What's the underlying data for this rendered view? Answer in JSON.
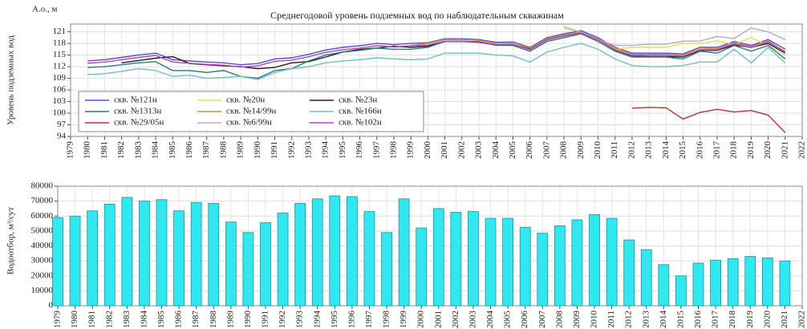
{
  "chart_data": [
    {
      "type": "line",
      "title": "Среднегодовой уровень подземных вод по наблюдательным скважинам",
      "annotation": "А.о., м",
      "ylabel": "Уровень подземных вод",
      "grid": true,
      "legend": "lower left",
      "xlim": [
        1979,
        2022
      ],
      "xticks": [
        1979,
        1980,
        1981,
        1982,
        1983,
        1984,
        1985,
        1986,
        1987,
        1988,
        1989,
        1990,
        1991,
        1992,
        1993,
        1994,
        1995,
        1996,
        1997,
        1998,
        1999,
        2000,
        2001,
        2002,
        2003,
        2004,
        2005,
        2006,
        2007,
        2008,
        2009,
        2010,
        2011,
        2012,
        2013,
        2014,
        2015,
        2016,
        2017,
        2018,
        2019,
        2020,
        2021,
        2022
      ],
      "ylim": [
        94,
        123
      ],
      "yticks": [
        94,
        97,
        100,
        103,
        106,
        109,
        112,
        115,
        118,
        121
      ],
      "x": [
        1980,
        1981,
        1982,
        1983,
        1984,
        1985,
        1986,
        1987,
        1988,
        1989,
        1990,
        1991,
        1992,
        1993,
        1994,
        1995,
        1996,
        1997,
        1998,
        1999,
        2000,
        2001,
        2002,
        2003,
        2004,
        2005,
        2006,
        2007,
        2008,
        2009,
        2010,
        2011,
        2012,
        2013,
        2014,
        2015,
        2016,
        2017,
        2018,
        2019,
        2020,
        2021
      ],
      "series": [
        {
          "name": "скв. №121н",
          "color": "#5050d0",
          "values": [
            113.5,
            113.8,
            114.4,
            115.0,
            115.5,
            113.8,
            113.5,
            113.2,
            113.0,
            112.5,
            112.8,
            114.0,
            114.3,
            115.2,
            116.3,
            117.0,
            117.4,
            118.0,
            117.7,
            118.0,
            118.2,
            119.2,
            119.2,
            119.0,
            118.3,
            118.4,
            117.0,
            119.5,
            120.5,
            121.3,
            119.5,
            117.0,
            115.5,
            115.5,
            115.5,
            115.3,
            117.0,
            117.0,
            118.5,
            117.5,
            119.0,
            116.5
          ]
        },
        {
          "name": "скв. №20н",
          "color": "#e8e050",
          "values": [
            null,
            null,
            null,
            null,
            null,
            null,
            null,
            null,
            null,
            null,
            null,
            null,
            null,
            null,
            null,
            null,
            null,
            null,
            null,
            null,
            null,
            null,
            null,
            null,
            null,
            null,
            null,
            null,
            122.5,
            120.8,
            118.5,
            116.5,
            117.0,
            117.0,
            117.0,
            118.0,
            118.0,
            118.7,
            117.8,
            119.5,
            117.5,
            115.0
          ]
        },
        {
          "name": "скв. №23н",
          "color": "#202020",
          "values": [
            null,
            null,
            113.0,
            113.6,
            114.2,
            114.6,
            112.8,
            112.5,
            112.2,
            112.0,
            111.5,
            111.8,
            113.0,
            113.3,
            114.5,
            115.8,
            116.5,
            116.8,
            117.3,
            117.0,
            117.3,
            118.5,
            118.5,
            118.3,
            117.6,
            117.7,
            116.6,
            119.0,
            120.0,
            120.8,
            119.0,
            116.3,
            114.8,
            114.6,
            114.6,
            114.5,
            116.2,
            116.2,
            117.6,
            117.0,
            118.0,
            115.5
          ]
        },
        {
          "name": "скв. №1313н",
          "color": "#208080",
          "values": [
            111.8,
            112.0,
            112.5,
            113.0,
            113.3,
            111.0,
            111.0,
            110.5,
            111.0,
            109.5,
            109.0,
            111.0,
            111.5,
            113.5,
            115.0,
            115.8,
            116.2,
            116.8,
            116.5,
            116.5,
            117.0,
            118.5,
            118.5,
            118.5,
            117.5,
            117.5,
            116.0,
            118.5,
            119.5,
            120.5,
            118.5,
            116.0,
            114.5,
            114.5,
            114.5,
            114.0,
            116.0,
            115.5,
            117.5,
            116.0,
            117.5,
            114.0
          ]
        },
        {
          "name": "скв. №14/99н",
          "color": "#d09040",
          "values": [
            null,
            null,
            null,
            null,
            null,
            null,
            null,
            null,
            null,
            null,
            null,
            null,
            null,
            null,
            null,
            null,
            null,
            null,
            null,
            117.5,
            118.0,
            119.0,
            119.0,
            118.8,
            118.0,
            118.2,
            116.8,
            119.2,
            120.2,
            121.0,
            119.2,
            116.8,
            115.2,
            115.2,
            115.2,
            115.0,
            116.8,
            116.6,
            118.2,
            117.2,
            118.6,
            115.8
          ]
        },
        {
          "name": "скв. №166н",
          "color": "#70c0c0",
          "values": [
            110.0,
            110.2,
            110.8,
            111.5,
            111.0,
            109.5,
            109.8,
            109.0,
            109.2,
            109.5,
            108.7,
            110.5,
            111.5,
            112.0,
            113.0,
            113.5,
            113.8,
            114.3,
            114.0,
            113.8,
            114.0,
            115.5,
            115.5,
            115.5,
            115.0,
            114.8,
            113.2,
            115.8,
            117.0,
            118.0,
            116.5,
            114.0,
            112.3,
            112.0,
            112.0,
            112.3,
            113.2,
            113.2,
            116.5,
            113.0,
            117.0,
            113.0
          ]
        },
        {
          "name": "скв. №29/05н",
          "color": "#c03030",
          "values": [
            null,
            null,
            null,
            null,
            null,
            null,
            null,
            null,
            null,
            null,
            null,
            null,
            null,
            null,
            null,
            null,
            null,
            null,
            null,
            null,
            null,
            null,
            null,
            null,
            null,
            null,
            null,
            null,
            null,
            null,
            null,
            null,
            101.3,
            101.5,
            101.4,
            98.5,
            100.2,
            101.0,
            100.3,
            100.7,
            99.5,
            95.0
          ]
        },
        {
          "name": "скв. №6/99н",
          "color": "#b8a8d0",
          "values": [
            null,
            null,
            null,
            null,
            null,
            null,
            null,
            null,
            null,
            null,
            null,
            null,
            null,
            null,
            null,
            null,
            null,
            null,
            null,
            null,
            null,
            null,
            null,
            null,
            null,
            null,
            null,
            null,
            122.0,
            121.0,
            119.0,
            117.5,
            117.5,
            117.8,
            117.8,
            118.6,
            118.6,
            119.8,
            119.3,
            122.0,
            121.0,
            119.0
          ]
        },
        {
          "name": "скв. №102н",
          "color": "#c040c0",
          "values": [
            112.9,
            113.2,
            113.8,
            114.4,
            114.9,
            113.2,
            112.9,
            112.6,
            112.4,
            111.9,
            112.2,
            113.4,
            113.7,
            114.6,
            115.7,
            116.4,
            116.8,
            117.4,
            117.1,
            117.4,
            117.6,
            118.6,
            118.6,
            118.4,
            117.7,
            117.8,
            116.4,
            118.9,
            119.9,
            120.7,
            118.9,
            116.4,
            114.9,
            114.9,
            114.9,
            114.7,
            116.4,
            116.4,
            117.9,
            116.9,
            118.4,
            115.9
          ]
        }
      ]
    },
    {
      "type": "bar",
      "ylabel": "Водоотбор, м³/сут",
      "grid": true,
      "color": "#30e8f0",
      "xlim": [
        1979,
        2022
      ],
      "xticks": [
        1979,
        1980,
        1981,
        1982,
        1983,
        1984,
        1985,
        1986,
        1987,
        1988,
        1989,
        1990,
        1991,
        1992,
        1993,
        1994,
        1995,
        1996,
        1997,
        1998,
        1999,
        2000,
        2001,
        2002,
        2003,
        2004,
        2005,
        2006,
        2007,
        2008,
        2009,
        2010,
        2011,
        2012,
        2013,
        2014,
        2015,
        2016,
        2017,
        2018,
        2019,
        2020,
        2021,
        2022
      ],
      "ylim": [
        0,
        80000
      ],
      "yticks": [
        0,
        10000,
        20000,
        30000,
        40000,
        50000,
        60000,
        70000,
        80000
      ],
      "x": [
        1979,
        1980,
        1981,
        1982,
        1983,
        1984,
        1985,
        1986,
        1987,
        1988,
        1989,
        1990,
        1991,
        1992,
        1993,
        1994,
        1995,
        1996,
        1997,
        1998,
        1999,
        2000,
        2001,
        2002,
        2003,
        2004,
        2005,
        2006,
        2007,
        2008,
        2009,
        2010,
        2011,
        2012,
        2013,
        2014,
        2015,
        2016,
        2017,
        2018,
        2019,
        2020,
        2021
      ],
      "values": [
        59000,
        60000,
        63500,
        68000,
        72500,
        70000,
        71000,
        63500,
        69000,
        68500,
        56000,
        49000,
        55500,
        62000,
        68500,
        71500,
        73500,
        73000,
        63000,
        49000,
        71500,
        52000,
        65000,
        62500,
        63000,
        58500,
        58500,
        52500,
        48500,
        53500,
        57500,
        61000,
        58500,
        44000,
        37500,
        27500,
        20000,
        28500,
        30500,
        31500,
        33000,
        32000,
        30000
      ]
    }
  ]
}
